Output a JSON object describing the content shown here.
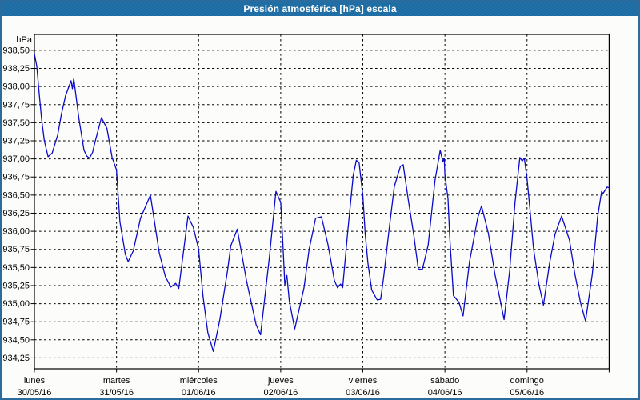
{
  "window": {
    "title": "Presión atmosférica [hPa] escala",
    "title_bg": "#1f6fa7",
    "border_color": "#2b6c9e",
    "background": "#fcfdfa"
  },
  "chart_data": {
    "type": "line",
    "title": "Presión atmosférica [hPa] escala",
    "unit_label": "hPa",
    "grid": "dashed",
    "legend_position": "none",
    "line_color": "#0a0ac8",
    "axis_color": "#000000",
    "y_axis": {
      "top_value": 938.72,
      "bottom_value": 934.1,
      "tick_step": 0.25,
      "tick_labels": [
        {
          "value": 938.5,
          "label": "938,50"
        },
        {
          "value": 938.25,
          "label": "938,25"
        },
        {
          "value": 938.0,
          "label": "938,00"
        },
        {
          "value": 937.75,
          "label": "937,75"
        },
        {
          "value": 937.5,
          "label": "937,50"
        },
        {
          "value": 937.25,
          "label": "937,25"
        },
        {
          "value": 937.0,
          "label": "937,00"
        },
        {
          "value": 936.75,
          "label": "936,75"
        },
        {
          "value": 936.5,
          "label": "936,50"
        },
        {
          "value": 936.25,
          "label": "936,25"
        },
        {
          "value": 936.0,
          "label": "936,00"
        },
        {
          "value": 935.75,
          "label": "935,75"
        },
        {
          "value": 935.5,
          "label": "935,50"
        },
        {
          "value": 935.25,
          "label": "935,25"
        },
        {
          "value": 935.0,
          "label": "935,00"
        },
        {
          "value": 934.75,
          "label": "934,75"
        },
        {
          "value": 934.5,
          "label": "934,50"
        },
        {
          "value": 934.25,
          "label": "934,25"
        }
      ]
    },
    "x_axis": {
      "start_hour": 0,
      "end_hour": 168,
      "day_tick_interval_hours": 24,
      "days": [
        {
          "name": "lunes",
          "date": "30/05/16",
          "hour": 0
        },
        {
          "name": "martes",
          "date": "31/05/16",
          "hour": 24
        },
        {
          "name": "miércoles",
          "date": "01/06/16",
          "hour": 48
        },
        {
          "name": "jueves",
          "date": "02/06/16",
          "hour": 72
        },
        {
          "name": "viernes",
          "date": "03/06/16",
          "hour": 96
        },
        {
          "name": "sábado",
          "date": "04/06/16",
          "hour": 120
        },
        {
          "name": "domingo",
          "date": "05/06/16",
          "hour": 144
        }
      ]
    },
    "series": [
      {
        "name": "Presión atmosférica [hPa]",
        "color": "#0a0ac8",
        "points": [
          [
            0.0,
            938.45
          ],
          [
            0.7,
            938.28
          ],
          [
            1.4,
            937.9
          ],
          [
            2.1,
            937.55
          ],
          [
            2.9,
            937.25
          ],
          [
            4.0,
            937.03
          ],
          [
            5.2,
            937.08
          ],
          [
            6.8,
            937.33
          ],
          [
            7.9,
            937.62
          ],
          [
            9.1,
            937.87
          ],
          [
            10.7,
            938.08
          ],
          [
            11.1,
            937.97
          ],
          [
            11.5,
            938.11
          ],
          [
            13.0,
            937.56
          ],
          [
            14.5,
            937.12
          ],
          [
            15.3,
            937.04
          ],
          [
            16.1,
            937.01
          ],
          [
            17.0,
            937.09
          ],
          [
            17.7,
            937.23
          ],
          [
            19.6,
            937.57
          ],
          [
            21.2,
            937.42
          ],
          [
            22.7,
            937.02
          ],
          [
            24.0,
            936.85
          ],
          [
            25.0,
            936.13
          ],
          [
            26.6,
            935.68
          ],
          [
            27.4,
            935.58
          ],
          [
            28.9,
            935.73
          ],
          [
            31.0,
            936.18
          ],
          [
            33.9,
            936.5
          ],
          [
            36.5,
            935.7
          ],
          [
            38.3,
            935.37
          ],
          [
            39.9,
            935.23
          ],
          [
            41.3,
            935.28
          ],
          [
            42.2,
            935.21
          ],
          [
            44.9,
            936.21
          ],
          [
            46.5,
            936.05
          ],
          [
            48.0,
            935.75
          ],
          [
            49.3,
            935.1
          ],
          [
            50.7,
            934.6
          ],
          [
            52.3,
            934.34
          ],
          [
            54.2,
            934.78
          ],
          [
            56.5,
            935.47
          ],
          [
            57.4,
            935.8
          ],
          [
            59.3,
            936.03
          ],
          [
            62.0,
            935.32
          ],
          [
            64.8,
            934.71
          ],
          [
            66.1,
            934.57
          ],
          [
            68.7,
            935.65
          ],
          [
            70.6,
            936.55
          ],
          [
            72.0,
            936.4
          ],
          [
            72.6,
            935.85
          ],
          [
            73.2,
            935.26
          ],
          [
            73.8,
            935.39
          ],
          [
            74.5,
            935.04
          ],
          [
            76.1,
            934.65
          ],
          [
            78.8,
            935.22
          ],
          [
            80.3,
            935.75
          ],
          [
            82.2,
            936.18
          ],
          [
            83.9,
            936.2
          ],
          [
            85.8,
            935.82
          ],
          [
            87.7,
            935.32
          ],
          [
            88.6,
            935.22
          ],
          [
            89.5,
            935.27
          ],
          [
            90.1,
            935.22
          ],
          [
            91.6,
            936.0
          ],
          [
            93.2,
            936.77
          ],
          [
            94.1,
            936.98
          ],
          [
            94.9,
            936.95
          ],
          [
            96.0,
            936.5
          ],
          [
            96.7,
            935.96
          ],
          [
            97.5,
            935.56
          ],
          [
            98.6,
            935.19
          ],
          [
            100.2,
            935.05
          ],
          [
            101.2,
            935.06
          ],
          [
            102.1,
            935.37
          ],
          [
            103.7,
            936.03
          ],
          [
            105.2,
            936.62
          ],
          [
            107.0,
            936.9
          ],
          [
            107.8,
            936.92
          ],
          [
            109.3,
            936.43
          ],
          [
            110.9,
            935.95
          ],
          [
            112.2,
            935.48
          ],
          [
            113.4,
            935.47
          ],
          [
            115.1,
            935.81
          ],
          [
            117.1,
            936.7
          ],
          [
            118.6,
            937.12
          ],
          [
            119.4,
            936.96
          ],
          [
            119.8,
            937.01
          ],
          [
            120.0,
            936.78
          ],
          [
            120.9,
            936.45
          ],
          [
            121.4,
            935.93
          ],
          [
            122.5,
            935.11
          ],
          [
            124.1,
            935.02
          ],
          [
            125.3,
            934.83
          ],
          [
            127.2,
            935.58
          ],
          [
            129.6,
            936.19
          ],
          [
            130.7,
            936.35
          ],
          [
            132.7,
            935.97
          ],
          [
            134.6,
            935.41
          ],
          [
            136.2,
            935.04
          ],
          [
            137.3,
            934.78
          ],
          [
            138.9,
            935.45
          ],
          [
            140.5,
            936.4
          ],
          [
            141.9,
            937.02
          ],
          [
            142.6,
            936.97
          ],
          [
            143.2,
            937.01
          ],
          [
            144.0,
            936.73
          ],
          [
            144.8,
            936.33
          ],
          [
            145.9,
            935.76
          ],
          [
            147.5,
            935.26
          ],
          [
            148.8,
            934.98
          ],
          [
            150.6,
            935.56
          ],
          [
            152.2,
            935.96
          ],
          [
            154.1,
            936.21
          ],
          [
            156.4,
            935.88
          ],
          [
            158.0,
            935.41
          ],
          [
            159.6,
            935.02
          ],
          [
            161.1,
            934.76
          ],
          [
            163.1,
            935.41
          ],
          [
            164.6,
            936.19
          ],
          [
            165.8,
            936.55
          ],
          [
            166.2,
            936.52
          ],
          [
            167.4,
            936.61
          ],
          [
            168.0,
            936.6
          ]
        ]
      }
    ]
  }
}
